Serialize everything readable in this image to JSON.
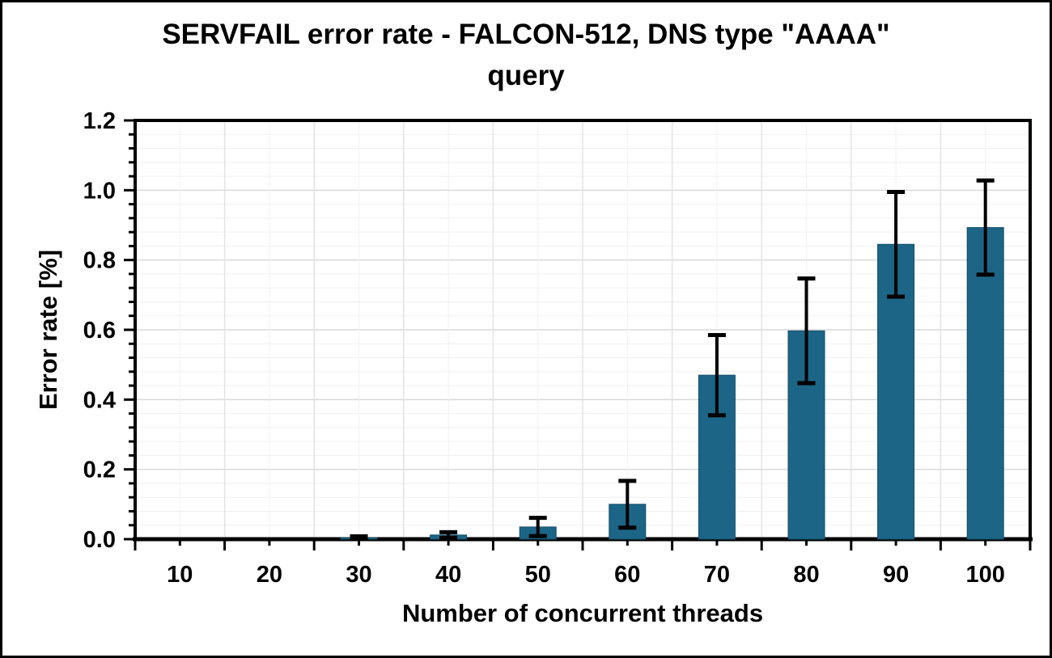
{
  "figure": {
    "title_lines": [
      "SERVFAIL error rate - FALCON-512, DNS type \"AAAA\"",
      "query"
    ]
  },
  "chart_data": {
    "type": "bar",
    "title": "SERVFAIL error rate - FALCON-512, DNS type \"AAAA\" query",
    "xlabel": "Number of concurrent threads",
    "ylabel": "Error rate [%]",
    "categories": [
      "10",
      "20",
      "30",
      "40",
      "50",
      "60",
      "70",
      "80",
      "90",
      "100"
    ],
    "series": [
      {
        "name": "SERVFAIL error rate",
        "values": [
          0,
          0,
          0.004,
          0.012,
          0.035,
          0.1,
          0.47,
          0.597,
          0.845,
          0.893
        ],
        "error_bars": [
          0,
          0,
          0.004,
          0.008,
          0.026,
          0.067,
          0.115,
          0.15,
          0.15,
          0.135
        ]
      }
    ],
    "ylim": [
      0,
      1.2
    ],
    "y_major_step": 0.2,
    "y_minor_step": 0.04,
    "y_tick_labels": [
      "0.0",
      "0.2",
      "0.4",
      "0.6",
      "0.8",
      "1.0",
      "1.2"
    ],
    "grid": true,
    "legend": false,
    "colors": {
      "bar_fill": "#1d6586",
      "bar_edge": "#134e68",
      "error_bar": "#000000",
      "grid_major": "#d9d9d9",
      "grid_minor": "#efefef",
      "grid_vertical": "#e3e3e3",
      "grid_vertical_minor": "#f1f1f1",
      "axis": "#000000"
    }
  }
}
